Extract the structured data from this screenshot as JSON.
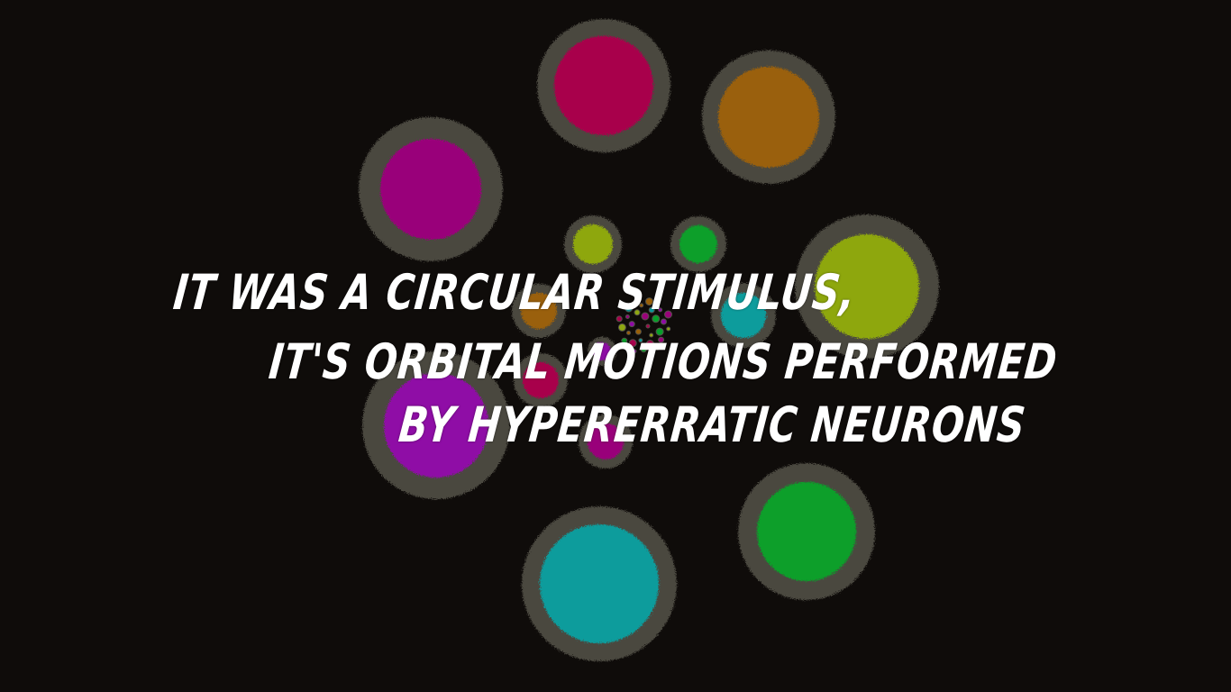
{
  "scene": {
    "background_color": "#0f0c0a",
    "ring_color": "#54524a",
    "caption_color": "#ffffff"
  },
  "caption": {
    "line1": "IT WAS A CIRCULAR STIMULUS,",
    "line2": "IT'S ORBITAL MOTIONS PERFORMED",
    "line3": "BY HYPERERRATIC NEURONS"
  },
  "circles": [
    {
      "name": "magenta-red-circle",
      "color": "#a8004c"
    },
    {
      "name": "orange-brown-circle",
      "color": "#9a6008"
    },
    {
      "name": "magenta-circle",
      "color": "#99037a"
    },
    {
      "name": "lime-green-circle",
      "color": "#8ea711"
    },
    {
      "name": "purple-circle",
      "color": "#8f0ba6"
    },
    {
      "name": "green-circle",
      "color": "#079f2a"
    },
    {
      "name": "teal-circle",
      "color": "#0a9c9c"
    },
    {
      "name": "small-lime-circle",
      "color": "#8ea711"
    },
    {
      "name": "small-green-circle",
      "color": "#079f2a"
    },
    {
      "name": "small-orange-circle",
      "color": "#9a6008"
    },
    {
      "name": "small-teal-circle",
      "color": "#0a9c9c"
    },
    {
      "name": "small-red-circle",
      "color": "#a8004c"
    },
    {
      "name": "small-magenta-circle",
      "color": "#99037a"
    },
    {
      "name": "small-purple-circle",
      "color": "#8f0ba6"
    }
  ]
}
